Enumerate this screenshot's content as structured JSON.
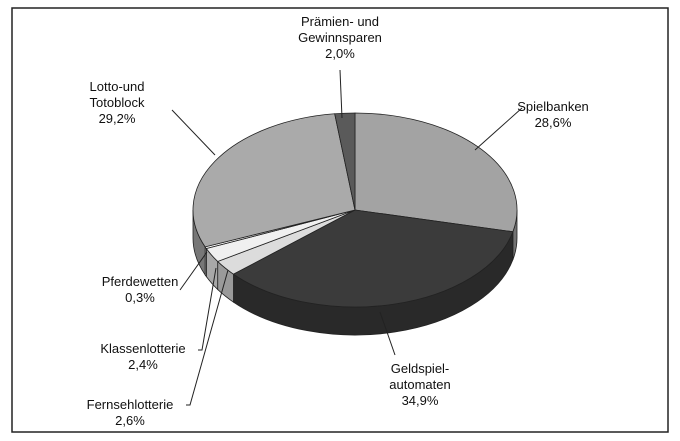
{
  "chart_data": {
    "type": "pie",
    "categories": [
      "Spielbanken",
      "Geldspiel-\nautomaten",
      "Fernsehlotterie",
      "Klassenlotterie",
      "Pferdewetten",
      "Lotto-und\nTotoblock",
      "Prämien- und\nGewinnsparen"
    ],
    "values": [
      28.6,
      34.9,
      2.6,
      2.4,
      0.3,
      29.2,
      2.0
    ],
    "value_labels": [
      "28,6%",
      "34,9%",
      "2,6%",
      "2,4%",
      "0,3%",
      "29,2%",
      "2,0%"
    ],
    "colors": [
      "#a3a3a3",
      "#3b3b3b",
      "#dcdcdc",
      "#f0f0f0",
      "#ffffff",
      "#aaaaaa",
      "#5a5a5a"
    ]
  }
}
